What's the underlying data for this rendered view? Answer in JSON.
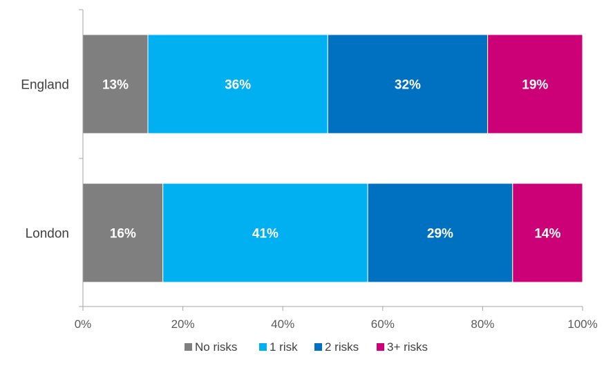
{
  "chart_data": {
    "type": "bar",
    "orientation": "horizontal",
    "stacked": true,
    "categories": [
      "England",
      "London"
    ],
    "series": [
      {
        "name": "No risks",
        "color": "#7f7f7f",
        "values": [
          13,
          16
        ],
        "labels": [
          "13%",
          "16%"
        ]
      },
      {
        "name": "1 risk",
        "color": "#00b0f0",
        "values": [
          36,
          41
        ],
        "labels": [
          "36%",
          "41%"
        ]
      },
      {
        "name": "2 risks",
        "color": "#0070c0",
        "values": [
          32,
          29
        ],
        "labels": [
          "32%",
          "29%"
        ]
      },
      {
        "name": "3+ risks",
        "color": "#cc0077",
        "values": [
          19,
          14
        ],
        "labels": [
          "19%",
          "14%"
        ]
      }
    ],
    "xlim": [
      0,
      100
    ],
    "xticks": [
      "0%",
      "20%",
      "40%",
      "60%",
      "80%",
      "100%"
    ],
    "grid": false,
    "legend": "bottom"
  }
}
